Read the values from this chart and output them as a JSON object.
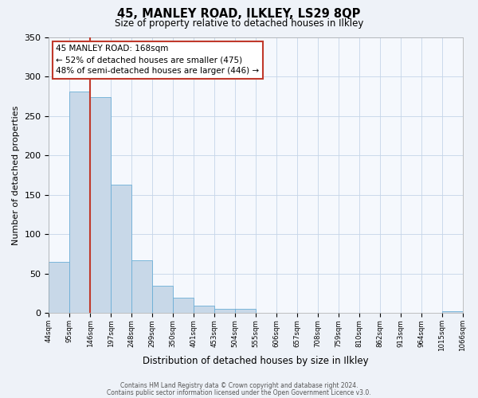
{
  "title": "45, MANLEY ROAD, ILKLEY, LS29 8QP",
  "subtitle": "Size of property relative to detached houses in Ilkley",
  "xlabel": "Distribution of detached houses by size in Ilkley",
  "ylabel": "Number of detached properties",
  "bar_values": [
    65,
    281,
    274,
    163,
    67,
    35,
    20,
    10,
    5,
    5,
    0,
    0,
    0,
    0,
    0,
    0,
    0,
    0,
    0,
    2
  ],
  "bin_labels": [
    "44sqm",
    "95sqm",
    "146sqm",
    "197sqm",
    "248sqm",
    "299sqm",
    "350sqm",
    "401sqm",
    "453sqm",
    "504sqm",
    "555sqm",
    "606sqm",
    "657sqm",
    "708sqm",
    "759sqm",
    "810sqm",
    "862sqm",
    "913sqm",
    "964sqm",
    "1015sqm",
    "1066sqm"
  ],
  "bar_color": "#c8d8e8",
  "bar_edge_color": "#6baed6",
  "vline_x": 2.0,
  "vline_color": "#c0392b",
  "annotation_text": "45 MANLEY ROAD: 168sqm\n← 52% of detached houses are smaller (475)\n48% of semi-detached houses are larger (446) →",
  "annotation_box_edge": "#c0392b",
  "ylim": [
    0,
    350
  ],
  "yticks": [
    0,
    50,
    100,
    150,
    200,
    250,
    300,
    350
  ],
  "footer1": "Contains HM Land Registry data © Crown copyright and database right 2024.",
  "footer2": "Contains public sector information licensed under the Open Government Licence v3.0.",
  "bg_color": "#eef2f8",
  "plot_bg_color": "#f5f8fd",
  "grid_color": "#c5d5e8"
}
